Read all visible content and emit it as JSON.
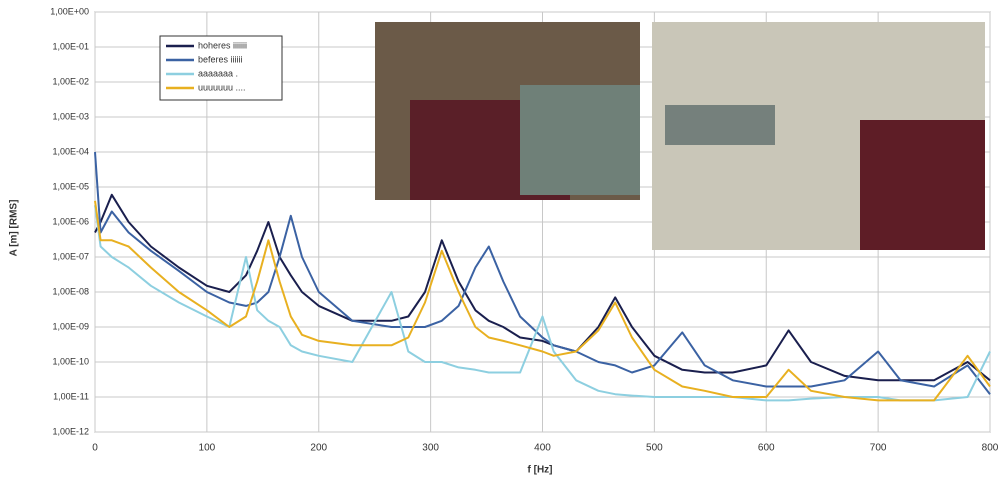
{
  "chart_data": {
    "type": "line",
    "xlabel": "f [Hz]",
    "ylabel": "A [m] [RMS]",
    "x": [
      0,
      5,
      15,
      30,
      50,
      75,
      100,
      120,
      135,
      145,
      155,
      165,
      175,
      185,
      200,
      230,
      265,
      280,
      295,
      310,
      325,
      340,
      352,
      365,
      380,
      400,
      410,
      430,
      450,
      465,
      480,
      500,
      525,
      545,
      570,
      600,
      620,
      640,
      670,
      700,
      720,
      750,
      780,
      800
    ],
    "series": [
      {
        "name": "hoheres iiiiiii",
        "color": "#1a1f4e",
        "values": [
          5e-07,
          1e-06,
          6e-06,
          1e-06,
          2e-07,
          5e-08,
          1.5e-08,
          1e-08,
          3e-08,
          1.5e-07,
          1e-06,
          1e-07,
          3e-08,
          1e-08,
          4e-09,
          1.5e-09,
          1.5e-09,
          2e-09,
          1e-08,
          3e-07,
          2e-08,
          3e-09,
          1.5e-09,
          1e-09,
          5e-10,
          4e-10,
          3e-10,
          2e-10,
          1e-09,
          7e-09,
          1e-09,
          1.5e-10,
          6e-11,
          5e-11,
          5e-11,
          8e-11,
          8e-10,
          1e-10,
          4e-11,
          3e-11,
          3e-11,
          3e-11,
          1e-10,
          3e-11
        ]
      },
      {
        "name": "beferes iiiiii",
        "color": "#3b62a3",
        "values": [
          0.0001,
          5e-07,
          2e-06,
          5e-07,
          1.5e-07,
          4e-08,
          1e-08,
          5e-09,
          4e-09,
          5e-09,
          1e-08,
          1e-07,
          1.5e-06,
          1e-07,
          1e-08,
          1.5e-09,
          1e-09,
          1e-09,
          1e-09,
          1.5e-09,
          4e-09,
          5e-08,
          2e-07,
          2e-08,
          2e-09,
          5e-10,
          3e-10,
          2e-10,
          1e-10,
          8e-11,
          5e-11,
          8e-11,
          7e-10,
          8e-11,
          3e-11,
          2e-11,
          2e-11,
          2e-11,
          3e-11,
          2e-10,
          3e-11,
          2e-11,
          8e-11,
          1.2e-11
        ]
      },
      {
        "name": "aaaaaaa .",
        "color": "#8dcfe0",
        "values": [
          3e-06,
          2e-07,
          1e-07,
          5e-08,
          1.5e-08,
          5e-09,
          2e-09,
          1e-09,
          1e-07,
          3e-09,
          1.5e-09,
          1e-09,
          3e-10,
          2e-10,
          1.5e-10,
          1e-10,
          1e-08,
          2e-10,
          1e-10,
          1e-10,
          7e-11,
          6e-11,
          5e-11,
          5e-11,
          5e-11,
          2e-09,
          2e-10,
          3e-11,
          1.5e-11,
          1.2e-11,
          1.1e-11,
          1e-11,
          1e-11,
          1e-11,
          1e-11,
          8e-12,
          8e-12,
          9e-12,
          1e-11,
          1e-11,
          8e-12,
          8e-12,
          1e-11,
          2e-10
        ]
      },
      {
        "name": "uuuuuuu ....",
        "color": "#e8b020",
        "values": [
          4e-06,
          3e-07,
          3e-07,
          2e-07,
          5e-08,
          1e-08,
          3e-09,
          1e-09,
          2e-09,
          2e-08,
          3e-07,
          2e-08,
          2e-09,
          6e-10,
          4e-10,
          3e-10,
          3e-10,
          5e-10,
          5e-09,
          1.5e-07,
          1e-08,
          1e-09,
          5e-10,
          4e-10,
          3e-10,
          2e-10,
          1.5e-10,
          2e-10,
          8e-10,
          5e-09,
          5e-10,
          6e-11,
          2e-11,
          1.5e-11,
          1e-11,
          1e-11,
          6e-11,
          1.5e-11,
          1e-11,
          8e-12,
          8e-12,
          8e-12,
          1.5e-10,
          2e-11
        ]
      }
    ],
    "xlim": [
      0,
      800
    ],
    "xticks": [
      0,
      100,
      200,
      300,
      400,
      500,
      600,
      700,
      800
    ],
    "ylim": [
      1e-12,
      1
    ],
    "ylog": true,
    "yticks": [
      {
        "value": 1,
        "label": "1,00E+00"
      },
      {
        "value": 0.1,
        "label": "1,00E-01"
      },
      {
        "value": 0.01,
        "label": "1,00E-02"
      },
      {
        "value": 0.001,
        "label": "1,00E-03"
      },
      {
        "value": 0.0001,
        "label": "1,00E-04"
      },
      {
        "value": 1e-05,
        "label": "1,00E-05"
      },
      {
        "value": 1e-06,
        "label": "1,00E-06"
      },
      {
        "value": 1e-07,
        "label": "1,00E-07"
      },
      {
        "value": 1e-08,
        "label": "1,00E-08"
      },
      {
        "value": 1e-09,
        "label": "1,00E-09"
      },
      {
        "value": 1e-10,
        "label": "1,00E-10"
      },
      {
        "value": 1e-11,
        "label": "1,00E-11"
      },
      {
        "value": 1e-12,
        "label": "1,00E-12"
      }
    ],
    "grid": true
  }
}
